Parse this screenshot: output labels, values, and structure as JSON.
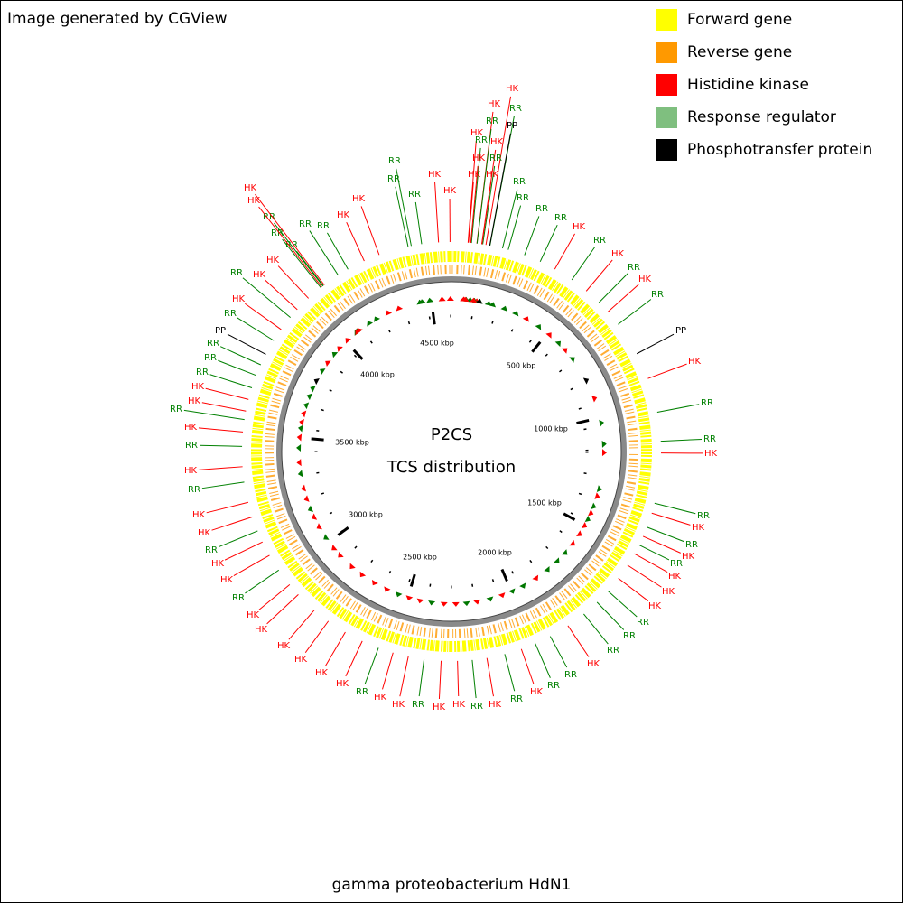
{
  "header": {
    "title": "Image generated by CGView"
  },
  "legend": [
    {
      "label": "Forward gene",
      "color": "#ffff00"
    },
    {
      "label": "Reverse gene",
      "color": "#ff9900"
    },
    {
      "label": "Histidine kinase",
      "color": "#ff0000"
    },
    {
      "label": "Response regulator",
      "color": "#7fbf7f"
    },
    {
      "label": "Phosphotransfer protein",
      "color": "#000000"
    }
  ],
  "center": {
    "title": "P2CS",
    "subtitle": "TCS distribution"
  },
  "footer": "gamma proteobacterium HdN1",
  "scale_labels": [
    "500 kbp",
    "1000 kbp",
    "1500 kbp",
    "2000 kbp",
    "2500 kbp",
    "3000 kbp",
    "3500 kbp",
    "4000 kbp",
    "4500 kbp"
  ],
  "features": [
    {
      "label": "HK",
      "color": "#ff0000"
    },
    {
      "label": "HK",
      "color": "#ff0000"
    },
    {
      "label": "RR",
      "color": "#008000"
    },
    {
      "label": "RR",
      "color": "#008000"
    },
    {
      "label": "PP",
      "color": "#000000"
    },
    {
      "label": "HK",
      "color": "#ff0000"
    },
    {
      "label": "RR",
      "color": "#008000"
    },
    {
      "label": "HK",
      "color": "#ff0000"
    },
    {
      "label": "HK",
      "color": "#ff0000"
    },
    {
      "label": "RR",
      "color": "#008000"
    },
    {
      "label": "HK",
      "color": "#ff0000"
    },
    {
      "label": "HK",
      "color": "#ff0000"
    },
    {
      "label": "RR",
      "color": "#008000"
    },
    {
      "label": "HK",
      "color": "#ff0000"
    },
    {
      "label": "HK",
      "color": "#ff0000"
    },
    {
      "label": "RR",
      "color": "#008000"
    },
    {
      "label": "RR",
      "color": "#008000"
    },
    {
      "label": "RR",
      "color": "#008000"
    },
    {
      "label": "RR",
      "color": "#008000"
    },
    {
      "label": "RR",
      "color": "#008000"
    },
    {
      "label": "RR",
      "color": "#008000"
    },
    {
      "label": "HK",
      "color": "#ff0000"
    },
    {
      "label": "RR",
      "color": "#008000"
    },
    {
      "label": "HK",
      "color": "#ff0000"
    },
    {
      "label": "RR",
      "color": "#008000"
    },
    {
      "label": "HK",
      "color": "#ff0000"
    },
    {
      "label": "RR",
      "color": "#008000"
    },
    {
      "label": "PP",
      "color": "#000000"
    },
    {
      "label": "HK",
      "color": "#ff0000"
    },
    {
      "label": "RR",
      "color": "#008000"
    },
    {
      "label": "RR",
      "color": "#008000"
    },
    {
      "label": "HK",
      "color": "#ff0000"
    },
    {
      "label": "RR",
      "color": "#008000"
    },
    {
      "label": "HK",
      "color": "#ff0000"
    },
    {
      "label": "RR",
      "color": "#008000"
    },
    {
      "label": "HK",
      "color": "#ff0000"
    },
    {
      "label": "RR",
      "color": "#008000"
    },
    {
      "label": "HK",
      "color": "#ff0000"
    },
    {
      "label": "HK",
      "color": "#ff0000"
    },
    {
      "label": "HK",
      "color": "#ff0000"
    },
    {
      "label": "RR",
      "color": "#008000"
    },
    {
      "label": "RR",
      "color": "#008000"
    },
    {
      "label": "RR",
      "color": "#008000"
    },
    {
      "label": "HK",
      "color": "#ff0000"
    },
    {
      "label": "RR",
      "color": "#008000"
    },
    {
      "label": "RR",
      "color": "#008000"
    },
    {
      "label": "HK",
      "color": "#ff0000"
    },
    {
      "label": "RR",
      "color": "#008000"
    },
    {
      "label": "HK",
      "color": "#ff0000"
    },
    {
      "label": "RR",
      "color": "#008000"
    },
    {
      "label": "HK",
      "color": "#ff0000"
    },
    {
      "label": "HK",
      "color": "#ff0000"
    },
    {
      "label": "RR",
      "color": "#008000"
    },
    {
      "label": "HK",
      "color": "#ff0000"
    },
    {
      "label": "HK",
      "color": "#ff0000"
    },
    {
      "label": "RR",
      "color": "#008000"
    },
    {
      "label": "HK",
      "color": "#ff0000"
    },
    {
      "label": "HK",
      "color": "#ff0000"
    },
    {
      "label": "HK",
      "color": "#ff0000"
    },
    {
      "label": "HK",
      "color": "#ff0000"
    },
    {
      "label": "HK",
      "color": "#ff0000"
    },
    {
      "label": "HK",
      "color": "#ff0000"
    },
    {
      "label": "RR",
      "color": "#008000"
    },
    {
      "label": "HK",
      "color": "#ff0000"
    },
    {
      "label": "HK",
      "color": "#ff0000"
    },
    {
      "label": "RR",
      "color": "#008000"
    },
    {
      "label": "HK",
      "color": "#ff0000"
    },
    {
      "label": "HK",
      "color": "#ff0000"
    },
    {
      "label": "RR",
      "color": "#008000"
    },
    {
      "label": "HK",
      "color": "#ff0000"
    },
    {
      "label": "RR",
      "color": "#008000"
    },
    {
      "label": "HK",
      "color": "#ff0000"
    },
    {
      "label": "RR",
      "color": "#008000"
    },
    {
      "label": "HK",
      "color": "#ff0000"
    },
    {
      "label": "HK",
      "color": "#ff0000"
    },
    {
      "label": "RR",
      "color": "#008000"
    },
    {
      "label": "RR",
      "color": "#008000"
    },
    {
      "label": "RR",
      "color": "#008000"
    },
    {
      "label": "PP",
      "color": "#000000"
    },
    {
      "label": "RR",
      "color": "#008000"
    },
    {
      "label": "HK",
      "color": "#ff0000"
    },
    {
      "label": "RR",
      "color": "#008000"
    },
    {
      "label": "HK",
      "color": "#ff0000"
    },
    {
      "label": "HK",
      "color": "#ff0000"
    },
    {
      "label": "RR",
      "color": "#008000"
    },
    {
      "label": "RR",
      "color": "#008000"
    },
    {
      "label": "RR",
      "color": "#008000"
    },
    {
      "label": "HK",
      "color": "#ff0000"
    },
    {
      "label": "HK",
      "color": "#ff0000"
    },
    {
      "label": "RR",
      "color": "#008000"
    },
    {
      "label": "RR",
      "color": "#008000"
    },
    {
      "label": "HK",
      "color": "#ff0000"
    },
    {
      "label": "HK",
      "color": "#ff0000"
    }
  ]
}
